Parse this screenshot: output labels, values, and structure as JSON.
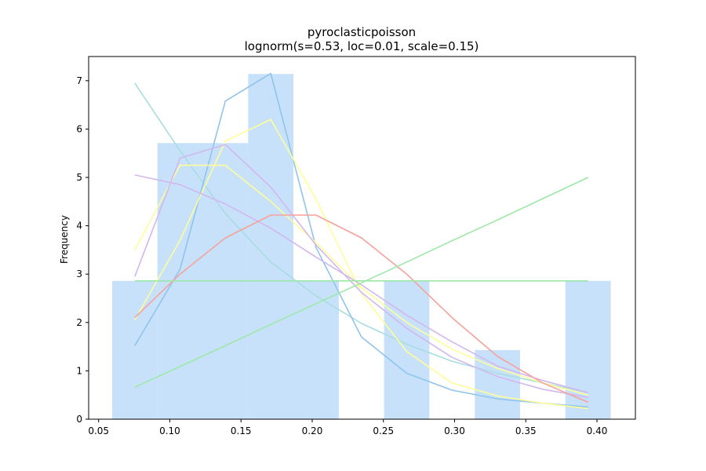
{
  "chart_data": {
    "type": "bar",
    "title": "pyroclasticpoisson",
    "subtitle": "lognorm(s=0.53, loc=0.01, scale=0.15)",
    "xlabel": "",
    "ylabel": "Frequency",
    "xlim": [
      0.043,
      0.427
    ],
    "ylim": [
      0,
      7.5
    ],
    "xticks": [
      0.05,
      0.1,
      0.15,
      0.2,
      0.25,
      0.3,
      0.35,
      0.4
    ],
    "xtick_labels": [
      "0.05",
      "0.10",
      "0.15",
      "0.20",
      "0.25",
      "0.30",
      "0.35",
      "0.40"
    ],
    "yticks": [
      0,
      1,
      2,
      3,
      4,
      5,
      6,
      7
    ],
    "ytick_labels": [
      "0",
      "1",
      "2",
      "3",
      "4",
      "5",
      "6",
      "7"
    ],
    "grid": false,
    "histogram": {
      "color": "#c8e1fb",
      "bins": [
        {
          "x0": 0.0595,
          "x1": 0.0913,
          "value": 2.86
        },
        {
          "x0": 0.0913,
          "x1": 0.155,
          "value": 5.71
        },
        {
          "x0": 0.155,
          "x1": 0.1868,
          "value": 7.14
        },
        {
          "x0": 0.1868,
          "x1": 0.2187,
          "value": 2.86
        },
        {
          "x0": 0.2505,
          "x1": 0.2823,
          "value": 2.86
        },
        {
          "x0": 0.3142,
          "x1": 0.346,
          "value": 1.43
        },
        {
          "x0": 0.3778,
          "x1": 0.4097,
          "value": 2.86
        }
      ]
    },
    "x": [
      0.0754,
      0.1072,
      0.139,
      0.1709,
      0.2027,
      0.2346,
      0.2664,
      0.2982,
      0.3301,
      0.3619,
      0.3938
    ],
    "series": [
      {
        "color": "#a8dde0",
        "values": [
          6.95,
          5.55,
          4.25,
          3.25,
          2.55,
          1.98,
          1.55,
          1.2,
          0.95,
          0.75,
          0.55
        ]
      },
      {
        "color": "#8fc4ec",
        "values": [
          1.52,
          3.1,
          6.58,
          7.15,
          3.55,
          1.7,
          0.95,
          0.6,
          0.42,
          0.33,
          0.25
        ]
      },
      {
        "color": "#fdfd9a",
        "values": [
          2.05,
          3.7,
          5.75,
          6.2,
          4.55,
          2.6,
          1.4,
          0.75,
          0.48,
          0.33,
          0.22
        ]
      },
      {
        "color": "#fdfd9a",
        "values": [
          3.5,
          5.25,
          5.25,
          4.5,
          3.65,
          2.72,
          2.0,
          1.45,
          1.05,
          0.75,
          0.5
        ]
      },
      {
        "color": "#d2b7ef",
        "values": [
          2.95,
          5.4,
          5.68,
          4.8,
          3.6,
          2.62,
          1.88,
          1.28,
          0.88,
          0.62,
          0.45
        ]
      },
      {
        "color": "#d2b7ef",
        "values": [
          5.05,
          4.85,
          4.45,
          3.95,
          3.35,
          2.78,
          2.15,
          1.6,
          1.1,
          0.8,
          0.55
        ]
      },
      {
        "color": "#f5a29a",
        "values": [
          2.1,
          3.0,
          3.75,
          4.22,
          4.22,
          3.75,
          3.0,
          2.1,
          1.3,
          0.75,
          0.35
        ]
      },
      {
        "color": "#9ce8a7",
        "values": [
          0.66,
          1.09,
          1.52,
          1.96,
          2.39,
          2.82,
          3.25,
          3.69,
          4.12,
          4.56,
          5.0
        ]
      },
      {
        "color": "#9ce8a7",
        "values": [
          2.86,
          2.86,
          2.86,
          2.86,
          2.86,
          2.86,
          2.86,
          2.86,
          2.86,
          2.86,
          2.86
        ]
      }
    ]
  }
}
